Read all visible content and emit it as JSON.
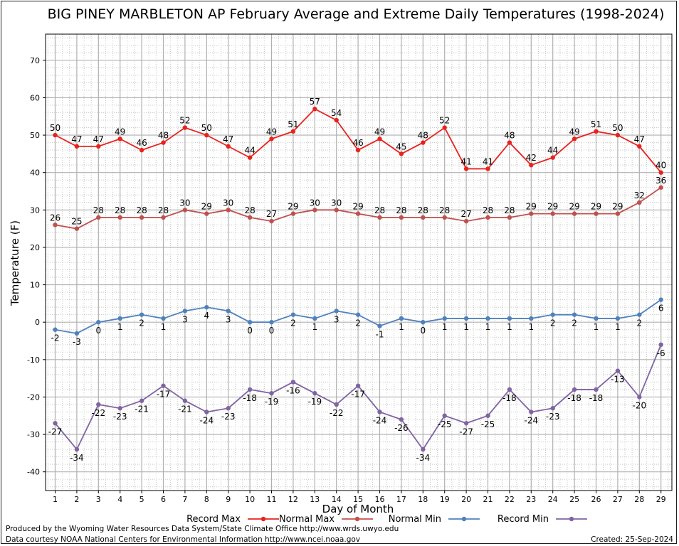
{
  "chart_data": {
    "type": "line",
    "title": "BIG PINEY MARBLETON AP February Average and Extreme Daily Temperatures (1998-2024)",
    "xlabel": "Day of Month",
    "ylabel": "Temperature (F)",
    "ylim": [
      -45,
      77
    ],
    "yticks": [
      -40,
      -30,
      -20,
      -10,
      0,
      10,
      20,
      30,
      40,
      50,
      60,
      70
    ],
    "x": [
      1,
      2,
      3,
      4,
      5,
      6,
      7,
      8,
      9,
      10,
      11,
      12,
      13,
      14,
      15,
      16,
      17,
      18,
      19,
      20,
      21,
      22,
      23,
      24,
      25,
      26,
      27,
      28,
      29
    ],
    "grid": true,
    "legend_position": "bottom",
    "series": [
      {
        "name": "Record Max",
        "color": "#e8231e",
        "values": [
          50,
          47,
          47,
          49,
          46,
          48,
          52,
          50,
          47,
          44,
          49,
          51,
          57,
          54,
          46,
          49,
          45,
          48,
          52,
          41,
          41,
          48,
          42,
          44,
          49,
          51,
          50,
          47,
          40
        ]
      },
      {
        "name": "Normal Max",
        "color": "#c0504d",
        "values": [
          26,
          25,
          28,
          28,
          28,
          28,
          30,
          29,
          30,
          28,
          27,
          29,
          30,
          30,
          29,
          28,
          28,
          28,
          28,
          27,
          28,
          28,
          29,
          29,
          29,
          29,
          29,
          32,
          36
        ]
      },
      {
        "name": "Normal Min",
        "color": "#4f81bd",
        "values": [
          -2,
          -3,
          0,
          1,
          2,
          1,
          3,
          4,
          3,
          0,
          0,
          2,
          1,
          3,
          2,
          -1,
          1,
          0,
          1,
          1,
          1,
          1,
          1,
          2,
          2,
          1,
          1,
          2,
          6
        ]
      },
      {
        "name": "Record Min",
        "color": "#8064a2",
        "values": [
          -27,
          -34,
          -22,
          -23,
          -21,
          -17,
          -21,
          -24,
          -23,
          -18,
          -19,
          -16,
          -19,
          -22,
          -17,
          -24,
          -26,
          -34,
          -25,
          -27,
          -25,
          -18,
          -24,
          -23,
          -18,
          -18,
          -13,
          -20,
          -6
        ]
      }
    ]
  },
  "footer": {
    "produced_by": "Produced by the Wyoming Water Resources Data System/State Climate Office http://www.wrds.uwyo.edu",
    "courtesy": "Data courtesy NOAA National Centers for Environmental Information http://www.ncei.noaa.gov",
    "created": "Created:  25-Sep-2024"
  }
}
